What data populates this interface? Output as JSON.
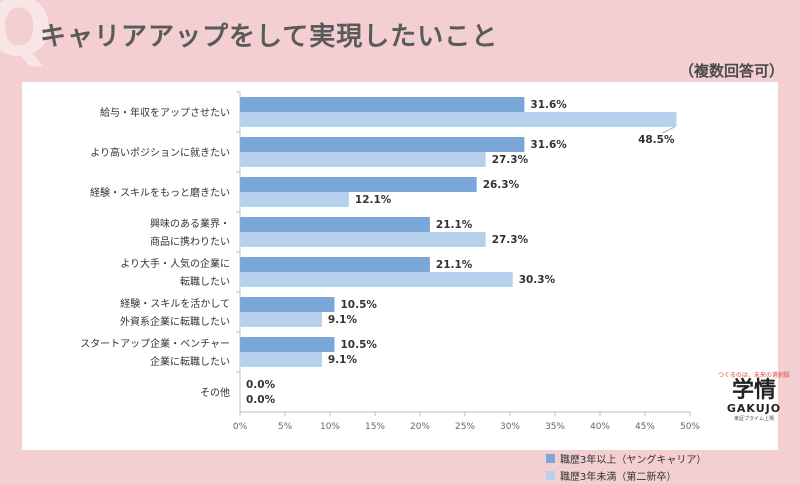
{
  "header": {
    "q_mark": "Q",
    "title": "キャリアアップをして実現したいこと",
    "subtitle": "（複数回答可）"
  },
  "legend": {
    "items": [
      {
        "label": "職歴3年以上（ヤングキャリア）",
        "color": "#7ba6d8"
      },
      {
        "label": "職歴3年未満（第二新卒）",
        "color": "#b7d0ee"
      }
    ]
  },
  "logo": {
    "tagline": "つくるのは、未来の選択肢",
    "mark": "学情",
    "wordmark": "GAKUJO",
    "subline": "東証プライム上場"
  },
  "chart_data": {
    "type": "bar",
    "orientation": "horizontal",
    "categories": [
      [
        "給与・年収をアップさせたい"
      ],
      [
        "より高いポジションに就きたい"
      ],
      [
        "経験・スキルをもっと磨きたい"
      ],
      [
        "興味のある業界・",
        "商品に携わりたい"
      ],
      [
        "より大手・人気の企業に",
        "転職したい"
      ],
      [
        "経験・スキルを活かして",
        "外資系企業に転職したい"
      ],
      [
        "スタートアップ企業・ベンチャー",
        "企業に転職したい"
      ],
      [
        "その他"
      ]
    ],
    "series": [
      {
        "name": "職歴3年以上（ヤングキャリア）",
        "color": "#7ba6d8",
        "values": [
          31.6,
          31.6,
          26.3,
          21.1,
          21.1,
          10.5,
          10.5,
          0.0
        ]
      },
      {
        "name": "職歴3年未満（第二新卒）",
        "color": "#b7d0ee",
        "values": [
          48.5,
          27.3,
          12.1,
          27.3,
          30.3,
          9.1,
          9.1,
          0.0
        ]
      }
    ],
    "xlim": [
      0,
      50
    ],
    "xticks": [
      0,
      5,
      10,
      15,
      20,
      25,
      30,
      35,
      40,
      45,
      50
    ],
    "tick_suffix": "%",
    "grid": false,
    "legend_position": "bottom-right"
  }
}
